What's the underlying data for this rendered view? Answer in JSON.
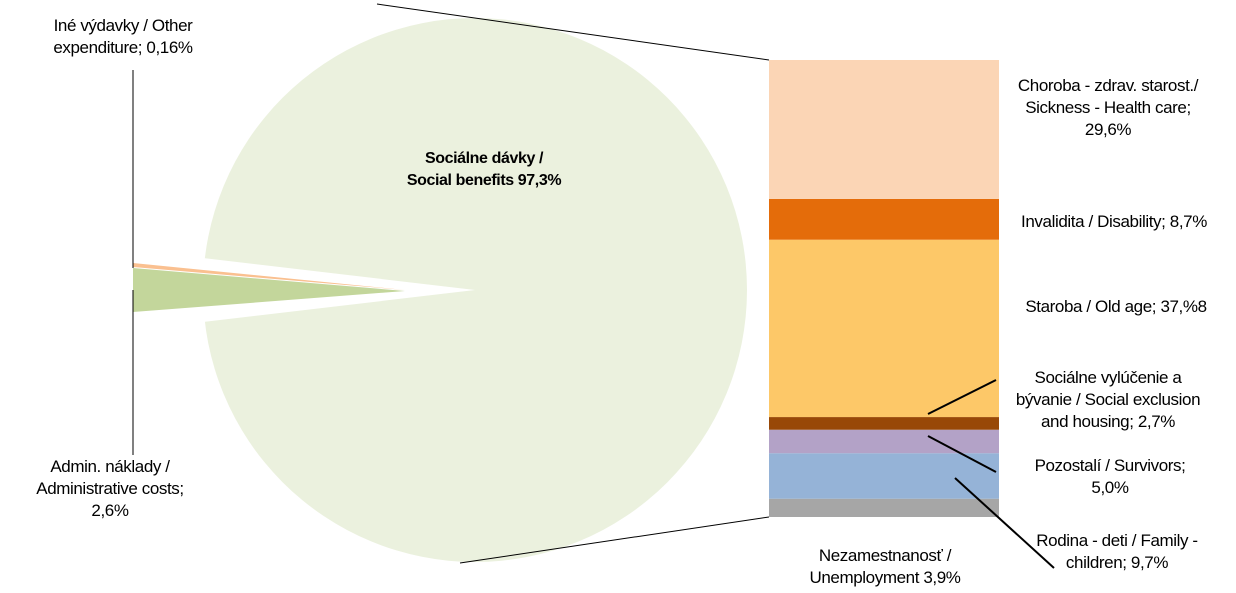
{
  "chart_data": {
    "type": "pie",
    "pie": {
      "slices": [
        {
          "label_line1": "Sociálne dávky /",
          "label_line2": "Social benefits 97,3%",
          "value": 97.3,
          "color": "#ebf1de"
        },
        {
          "label_line1": "Admin. náklady /",
          "label_line2": "Administrative costs;",
          "label_line3": "2,6%",
          "value": 2.6,
          "color": "#c3d69b"
        },
        {
          "label_line1": "Iné výdavky / Other",
          "label_line2": "expenditure; 0,16%",
          "value": 0.16,
          "color": "#fac090"
        }
      ]
    },
    "breakdown": {
      "type": "stacked-bar",
      "segments": [
        {
          "name": "Nezamestnanosť / Unemployment",
          "value": 3.9,
          "color": "#a6a6a6",
          "label_line1": "Nezamestnanosť /",
          "label_line2": "Unemployment 3,9%"
        },
        {
          "name": "Rodina - deti / Family - children",
          "value": 9.7,
          "color": "#95b3d7",
          "label_line1": "Rodina - deti / Family -",
          "label_line2": "children; 9,7%"
        },
        {
          "name": "Pozostalí / Survivors",
          "value": 5.0,
          "color": "#b3a2c7",
          "label_line1": "Pozostalí / Survivors;",
          "label_line2": "5,0%"
        },
        {
          "name": "Sociálne vylúčenie a bývanie / Social exclusion and housing",
          "value": 2.7,
          "color": "#984807",
          "label_line1": "Sociálne vylúčenie a",
          "label_line2": "bývanie / Social exclusion",
          "label_line3": "and housing; 2,7%"
        },
        {
          "name": "Staroba / Old age",
          "value": 37.8,
          "color": "#fdc868",
          "label_line1": "Staroba / Old age; 37,%8"
        },
        {
          "name": "Invalidita / Disability",
          "value": 8.7,
          "color": "#e46c0a",
          "label_line1": "Invalidita  / Disability;  8,7%"
        },
        {
          "name": "Choroba - zdrav. starost./ Sickness - Health care",
          "value": 29.6,
          "color": "#fbd5b5",
          "label_line1": "Choroba - zdrav. starost./",
          "label_line2": "Sickness  - Health care;",
          "label_line3": "29,6%"
        }
      ]
    }
  }
}
